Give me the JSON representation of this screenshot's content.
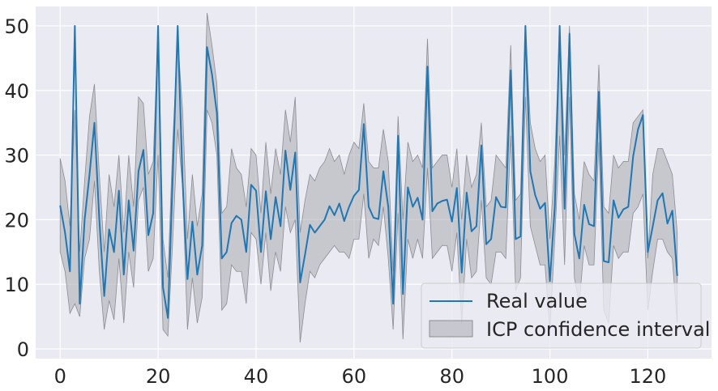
{
  "chart_data": {
    "type": "line",
    "title": "",
    "xlabel": "",
    "ylabel": "",
    "xlim": [
      -5,
      133
    ],
    "ylim": [
      -1.5,
      53
    ],
    "xticks": [
      0,
      20,
      40,
      60,
      80,
      100,
      120
    ],
    "yticks": [
      0,
      10,
      20,
      30,
      40,
      50
    ],
    "grid": true,
    "legend_position": "lower-right",
    "colors": {
      "line": "#1f77b4",
      "band_fill": "#a9a9b0",
      "band_edge": "#8c8c94",
      "plot_bg": "#eaeaf2",
      "grid": "#ffffff"
    },
    "series": [
      {
        "name": "Real value",
        "kind": "line",
        "x": [
          0,
          1,
          2,
          3,
          4,
          5,
          6,
          7,
          8,
          9,
          10,
          11,
          12,
          13,
          14,
          15,
          16,
          17,
          18,
          19,
          20,
          21,
          22,
          23,
          24,
          25,
          26,
          27,
          28,
          29,
          30,
          31,
          32,
          33,
          34,
          35,
          36,
          37,
          38,
          39,
          40,
          41,
          42,
          43,
          44,
          45,
          46,
          47,
          48,
          49,
          50,
          51,
          52,
          53,
          54,
          55,
          56,
          57,
          58,
          59,
          60,
          61,
          62,
          63,
          64,
          65,
          66,
          67,
          68,
          69,
          70,
          71,
          72,
          73,
          74,
          75,
          76,
          77,
          78,
          79,
          80,
          81,
          82,
          83,
          84,
          85,
          86,
          87,
          88,
          89,
          90,
          91,
          92,
          93,
          94,
          95,
          96,
          97,
          98,
          99,
          100,
          101,
          102,
          103,
          104,
          105,
          106,
          107,
          108,
          109,
          110,
          111,
          112,
          113,
          114,
          115,
          116,
          117,
          118,
          119,
          120,
          121,
          122,
          123,
          124,
          125,
          126
        ],
        "y": [
          22.2,
          18,
          12,
          50,
          7,
          20,
          27,
          35,
          20,
          8.2,
          18.5,
          15,
          24.5,
          11.5,
          23,
          15.2,
          27.5,
          30.8,
          17.6,
          21,
          50,
          9.5,
          4.8,
          27,
          50,
          26,
          10.8,
          19.7,
          11.5,
          16,
          46.7,
          42.5,
          36.5,
          14,
          15,
          19.5,
          20.6,
          20,
          15,
          25.4,
          24.5,
          15,
          24.4,
          17,
          23.5,
          19,
          30.7,
          24.6,
          30.4,
          10.3,
          14.6,
          19.2,
          18,
          19,
          20,
          22.1,
          20.7,
          22.5,
          19.8,
          22,
          23.7,
          24.6,
          34.8,
          22,
          20.3,
          20.1,
          27.5,
          22,
          7,
          33,
          8.5,
          25,
          22,
          23.4,
          20,
          43.7,
          21.3,
          22.5,
          22.9,
          23.1,
          19.7,
          24.9,
          11.8,
          24.2,
          18.2,
          19,
          31.5,
          16.2,
          17,
          23.5,
          22,
          21.9,
          43.1,
          17,
          17.4,
          50,
          27.5,
          23.8,
          21.7,
          22.6,
          10.5,
          22,
          50,
          21.7,
          48.8,
          17.8,
          14,
          22.3,
          19.3,
          19,
          39.8,
          13.6,
          13.4,
          23,
          20.3,
          21.6,
          22,
          29.8,
          34,
          36.2,
          15,
          19,
          23,
          24.1,
          19.4,
          21.4,
          11.3
        ]
      },
      {
        "name": "ICP confidence interval",
        "kind": "band",
        "lower": [
          15,
          12,
          5.5,
          7,
          5,
          14,
          17,
          26,
          12,
          3,
          7.5,
          4.5,
          14,
          4,
          15,
          9.5,
          23,
          25,
          12,
          14,
          30,
          3,
          2,
          17,
          34,
          25,
          3,
          11,
          4,
          8,
          37,
          35,
          30,
          6,
          7,
          13,
          12,
          12,
          7,
          18,
          17,
          10,
          18,
          9,
          15,
          12,
          22,
          18,
          20,
          1,
          7,
          12,
          11,
          13,
          14,
          15,
          16,
          15,
          15,
          14,
          17,
          17,
          24,
          14,
          17,
          16,
          22,
          14,
          3,
          21,
          1.5,
          17,
          14,
          17,
          14,
          28,
          14,
          15,
          16,
          16,
          12,
          18,
          4,
          17,
          11,
          12,
          23,
          11,
          10,
          15,
          15,
          14,
          33,
          9,
          11,
          39,
          19,
          16,
          13,
          13,
          3,
          17,
          33,
          13,
          39,
          11,
          7,
          16,
          13,
          13,
          32,
          6,
          4,
          16,
          14,
          15,
          15,
          21,
          22,
          24,
          6,
          12,
          17,
          17,
          15,
          14,
          4
        ],
        "upper": [
          29.5,
          26,
          19,
          37,
          15,
          26,
          36,
          41,
          27,
          15,
          27,
          22,
          30,
          18,
          30,
          22,
          39,
          38,
          27,
          29,
          50,
          17,
          11,
          32,
          48,
          37,
          17,
          27,
          19,
          24,
          52,
          47,
          41,
          21,
          22,
          31,
          28,
          27,
          22,
          31,
          30,
          21,
          32,
          24,
          31,
          27,
          37,
          32,
          39,
          18,
          23,
          27,
          26,
          28,
          29,
          31,
          29,
          30,
          27,
          30,
          32,
          31,
          38,
          29,
          28,
          28,
          34,
          29,
          12,
          36,
          20,
          32,
          29,
          30,
          28,
          48,
          28,
          29,
          30,
          30,
          25,
          31,
          20,
          30,
          25,
          27,
          35,
          22,
          23,
          30,
          29,
          28,
          47,
          23,
          24,
          50,
          35,
          31,
          29,
          30,
          17,
          29,
          50,
          30,
          50,
          24,
          20,
          29,
          27,
          26,
          44,
          22,
          21,
          30,
          28,
          29,
          29,
          35,
          36,
          37,
          14,
          27,
          31,
          31,
          29,
          27,
          18
        ]
      }
    ]
  },
  "legend": {
    "items": [
      {
        "label": "Real value",
        "swatch": "line"
      },
      {
        "label": "ICP confidence interval",
        "swatch": "patch"
      }
    ]
  }
}
